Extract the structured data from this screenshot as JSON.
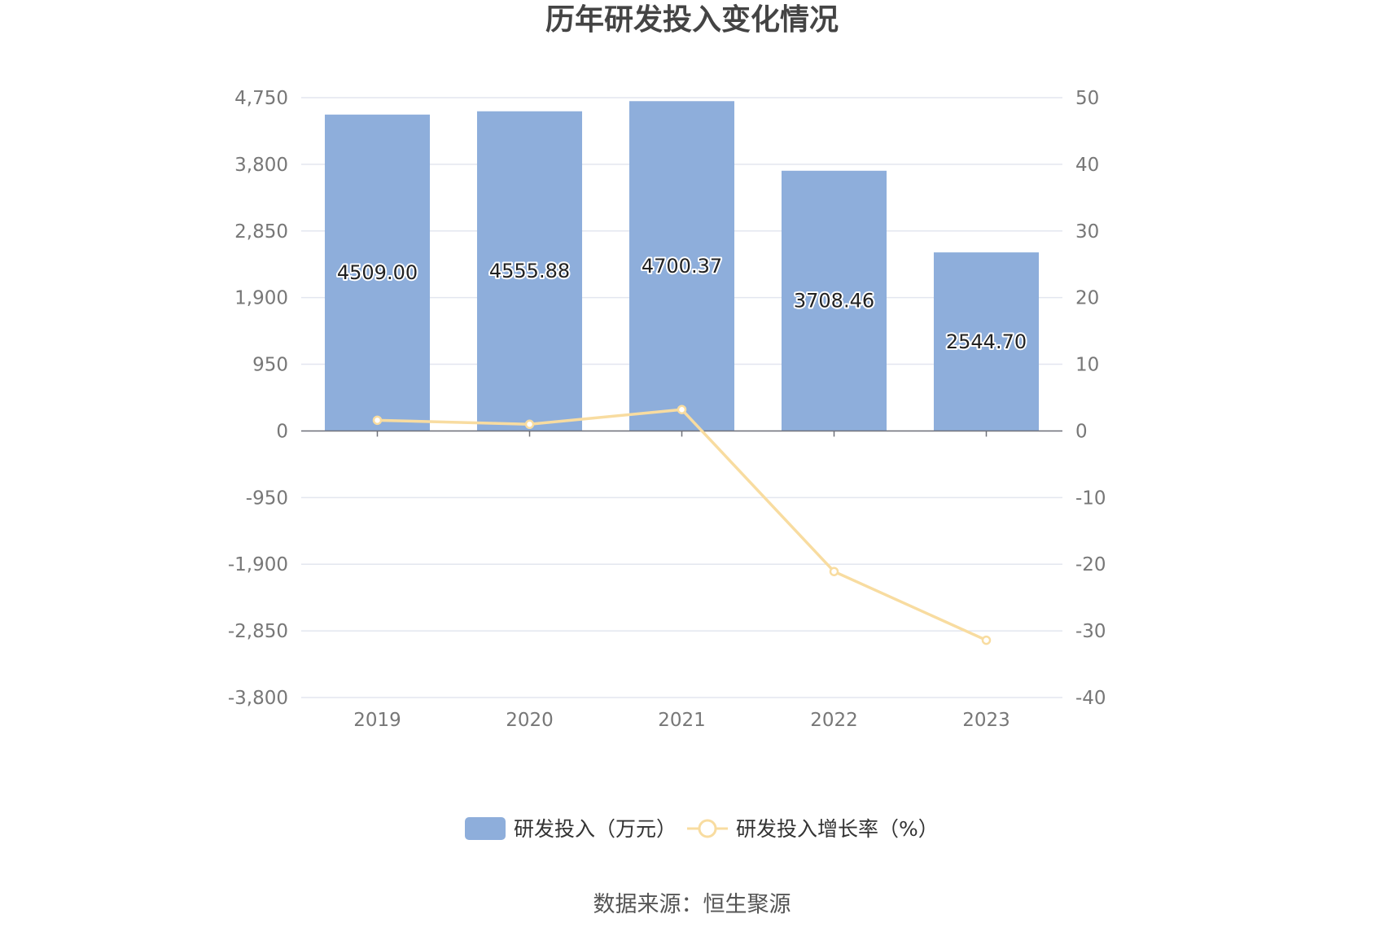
{
  "chart_data": {
    "type": "bar",
    "title": "历年研发投入变化情况",
    "categories": [
      "2019",
      "2020",
      "2021",
      "2022",
      "2023"
    ],
    "series": [
      {
        "name": "研发投入（万元）",
        "type": "bar",
        "axis": "left",
        "values": [
          4509.0,
          4555.88,
          4700.37,
          3708.46,
          2544.7
        ],
        "labels": [
          "4509.00",
          "4555.88",
          "4700.37",
          "3708.46",
          "2544.70"
        ]
      },
      {
        "name": "研发投入增长率（%）",
        "type": "line",
        "axis": "right",
        "values": [
          1.6,
          1.0,
          3.2,
          -21.1,
          -31.4
        ]
      }
    ],
    "y_left": {
      "range": [
        -3800,
        4750
      ],
      "ticks": [
        "4,750",
        "3,800",
        "2,850",
        "1,900",
        "950",
        "0",
        "-950",
        "-1,900",
        "-2,850",
        "-3,800"
      ]
    },
    "y_right": {
      "range": [
        -40,
        50
      ],
      "ticks": [
        "50",
        "40",
        "30",
        "20",
        "10",
        "0",
        "-10",
        "-20",
        "-30",
        "-40"
      ]
    },
    "grid": true,
    "legend_position": "bottom",
    "colors": {
      "bar": "#8eaedb",
      "line": "#f8dca0"
    }
  },
  "source": "数据来源：恒生聚源"
}
